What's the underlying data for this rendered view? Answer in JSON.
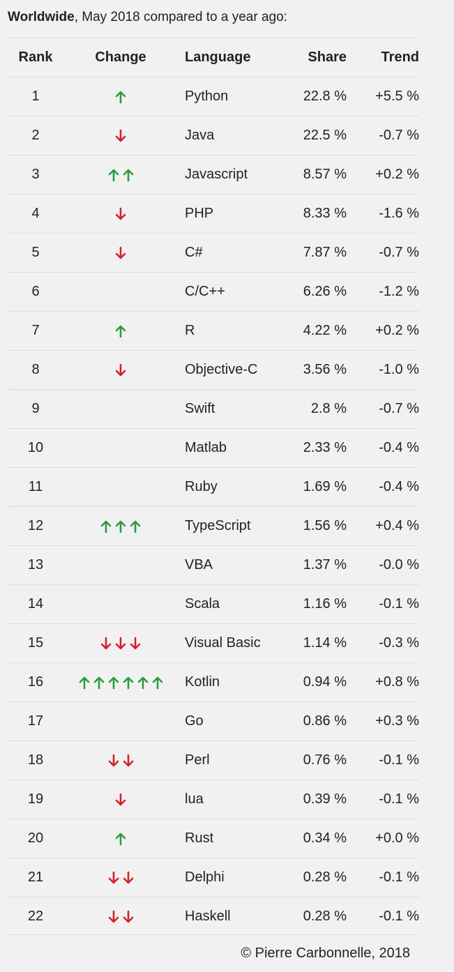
{
  "header": {
    "region": "Worldwide",
    "rest": ", May 2018 compared to a year ago:"
  },
  "columns": {
    "rank": "Rank",
    "change": "Change",
    "language": "Language",
    "share": "Share",
    "trend": "Trend"
  },
  "rows": [
    {
      "rank": "1",
      "change": {
        "dir": "up",
        "count": 1
      },
      "language": "Python",
      "share": "22.8 %",
      "trend": "+5.5 %"
    },
    {
      "rank": "2",
      "change": {
        "dir": "down",
        "count": 1
      },
      "language": "Java",
      "share": "22.5 %",
      "trend": "-0.7 %"
    },
    {
      "rank": "3",
      "change": {
        "dir": "up",
        "count": 2
      },
      "language": "Javascript",
      "share": "8.57 %",
      "trend": "+0.2 %"
    },
    {
      "rank": "4",
      "change": {
        "dir": "down",
        "count": 1
      },
      "language": "PHP",
      "share": "8.33 %",
      "trend": "-1.6 %"
    },
    {
      "rank": "5",
      "change": {
        "dir": "down",
        "count": 1
      },
      "language": "C#",
      "share": "7.87 %",
      "trend": "-0.7 %"
    },
    {
      "rank": "6",
      "change": {
        "dir": "none",
        "count": 0
      },
      "language": "C/C++",
      "share": "6.26 %",
      "trend": "-1.2 %"
    },
    {
      "rank": "7",
      "change": {
        "dir": "up",
        "count": 1
      },
      "language": "R",
      "share": "4.22 %",
      "trend": "+0.2 %"
    },
    {
      "rank": "8",
      "change": {
        "dir": "down",
        "count": 1
      },
      "language": "Objective-C",
      "share": "3.56 %",
      "trend": "-1.0 %"
    },
    {
      "rank": "9",
      "change": {
        "dir": "none",
        "count": 0
      },
      "language": "Swift",
      "share": "2.8 %",
      "trend": "-0.7 %"
    },
    {
      "rank": "10",
      "change": {
        "dir": "none",
        "count": 0
      },
      "language": "Matlab",
      "share": "2.33 %",
      "trend": "-0.4 %"
    },
    {
      "rank": "11",
      "change": {
        "dir": "none",
        "count": 0
      },
      "language": "Ruby",
      "share": "1.69 %",
      "trend": "-0.4 %"
    },
    {
      "rank": "12",
      "change": {
        "dir": "up",
        "count": 3
      },
      "language": "TypeScript",
      "share": "1.56 %",
      "trend": "+0.4 %"
    },
    {
      "rank": "13",
      "change": {
        "dir": "none",
        "count": 0
      },
      "language": "VBA",
      "share": "1.37 %",
      "trend": "-0.0 %"
    },
    {
      "rank": "14",
      "change": {
        "dir": "none",
        "count": 0
      },
      "language": "Scala",
      "share": "1.16 %",
      "trend": "-0.1 %"
    },
    {
      "rank": "15",
      "change": {
        "dir": "down",
        "count": 3
      },
      "language": "Visual Basic",
      "share": "1.14 %",
      "trend": "-0.3 %"
    },
    {
      "rank": "16",
      "change": {
        "dir": "up",
        "count": 6
      },
      "language": "Kotlin",
      "share": "0.94 %",
      "trend": "+0.8 %"
    },
    {
      "rank": "17",
      "change": {
        "dir": "none",
        "count": 0
      },
      "language": "Go",
      "share": "0.86 %",
      "trend": "+0.3 %"
    },
    {
      "rank": "18",
      "change": {
        "dir": "down",
        "count": 2
      },
      "language": "Perl",
      "share": "0.76 %",
      "trend": "-0.1 %"
    },
    {
      "rank": "19",
      "change": {
        "dir": "down",
        "count": 1
      },
      "language": "lua",
      "share": "0.39 %",
      "trend": "-0.1 %"
    },
    {
      "rank": "20",
      "change": {
        "dir": "up",
        "count": 1
      },
      "language": "Rust",
      "share": "0.34 %",
      "trend": "+0.0 %"
    },
    {
      "rank": "21",
      "change": {
        "dir": "down",
        "count": 2
      },
      "language": "Delphi",
      "share": "0.28 %",
      "trend": "-0.1 %"
    },
    {
      "rank": "22",
      "change": {
        "dir": "down",
        "count": 2
      },
      "language": "Haskell",
      "share": "0.28 %",
      "trend": "-0.1 %"
    }
  ],
  "footer": {
    "credit": "© Pierre Carbonnelle, 2018"
  },
  "colors": {
    "up": "#2a9d3f",
    "down": "#d2222d"
  },
  "icons": {
    "up": "arrow-up-icon",
    "down": "arrow-down-icon"
  }
}
